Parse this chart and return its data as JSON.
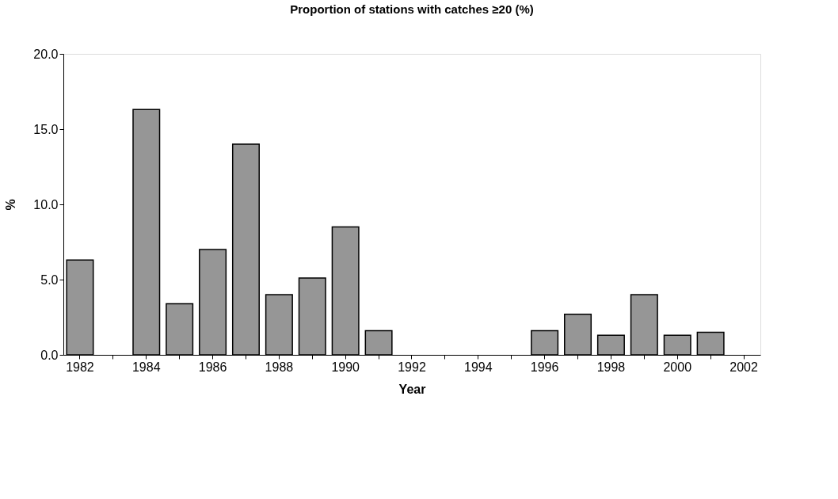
{
  "chart_data": {
    "type": "bar",
    "title": "Proportion of stations with catches ≥20 (%)",
    "xlabel": "Year",
    "ylabel": "%",
    "categories": [
      "1982",
      null,
      "1984",
      null,
      "1986",
      null,
      "1988",
      null,
      "1990",
      null,
      "1992",
      null,
      "1994",
      null,
      "1996",
      null,
      "1998",
      null,
      "2000",
      null,
      "2002"
    ],
    "values": [
      6.3,
      null,
      16.3,
      3.4,
      7.0,
      14.0,
      4.0,
      5.1,
      8.5,
      1.6,
      null,
      null,
      null,
      null,
      1.6,
      2.7,
      1.3,
      4.0,
      1.3,
      1.5,
      null
    ],
    "color": "#969696",
    "ylim": [
      0,
      20
    ],
    "yticks": [
      {
        "value": 0,
        "label": "0.0"
      },
      {
        "value": 5,
        "label": "5.0"
      },
      {
        "value": 10,
        "label": "10.0"
      },
      {
        "value": 15,
        "label": "15.0"
      },
      {
        "value": 20,
        "label": "20.0"
      }
    ],
    "grid": false
  }
}
